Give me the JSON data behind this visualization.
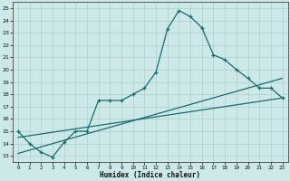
{
  "title": "",
  "xlabel": "Humidex (Indice chaleur)",
  "ylabel": "",
  "background_color": "#cce8e8",
  "grid_color": "#aacfcf",
  "line_color": "#1a6b6b",
  "bg_figure": "#cce8e8",
  "xlim": [
    -0.5,
    23.5
  ],
  "ylim": [
    12.5,
    25.5
  ],
  "xticks": [
    0,
    1,
    2,
    3,
    4,
    5,
    6,
    7,
    8,
    9,
    10,
    11,
    12,
    13,
    14,
    15,
    16,
    17,
    18,
    19,
    20,
    21,
    22,
    23
  ],
  "yticks": [
    13,
    14,
    15,
    16,
    17,
    18,
    19,
    20,
    21,
    22,
    23,
    24,
    25
  ],
  "curve1_x": [
    0,
    1,
    2,
    3,
    4,
    5,
    6,
    7,
    8,
    9,
    10,
    11,
    12,
    13,
    14,
    15,
    16,
    17,
    18,
    19,
    20,
    21,
    22,
    23
  ],
  "curve1_y": [
    15.0,
    14.0,
    13.3,
    12.9,
    14.1,
    15.0,
    15.0,
    17.5,
    17.5,
    17.5,
    18.0,
    18.5,
    19.8,
    23.3,
    24.8,
    24.3,
    23.4,
    21.2,
    20.8,
    20.0,
    19.3,
    18.5,
    18.5,
    17.7
  ],
  "curve2_x": [
    0,
    23
  ],
  "curve2_y": [
    14.5,
    17.7
  ],
  "curve3_x": [
    0,
    23
  ],
  "curve3_y": [
    13.2,
    19.3
  ]
}
